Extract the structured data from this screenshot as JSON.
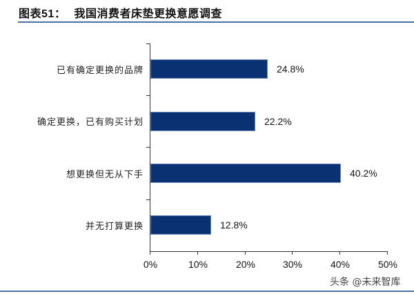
{
  "header": {
    "figure_label": "图表",
    "figure_number": "51",
    "separator": "：",
    "title": "我国消费者床垫更换意愿调查"
  },
  "watermark": "头条 @未来智库",
  "colors": {
    "bar": "#0a3273",
    "rule": "#4a6fa5"
  },
  "chart_data": {
    "type": "bar",
    "orientation": "horizontal",
    "title": "图表51： 我国消费者床垫更换意愿调查",
    "categories": [
      "已有确定更换的品牌",
      "确定更换，已有购买计划",
      "想更换但无从下手",
      "并无打算更换"
    ],
    "values": [
      24.8,
      22.2,
      40.2,
      12.8
    ],
    "value_labels": [
      "24.8%",
      "22.2%",
      "40.2%",
      "12.8%"
    ],
    "xlabel": "",
    "ylabel": "",
    "xlim": [
      0,
      50
    ],
    "xticks": [
      "0%",
      "10%",
      "20%",
      "30%",
      "40%",
      "50%"
    ],
    "grid": false,
    "legend": null
  }
}
